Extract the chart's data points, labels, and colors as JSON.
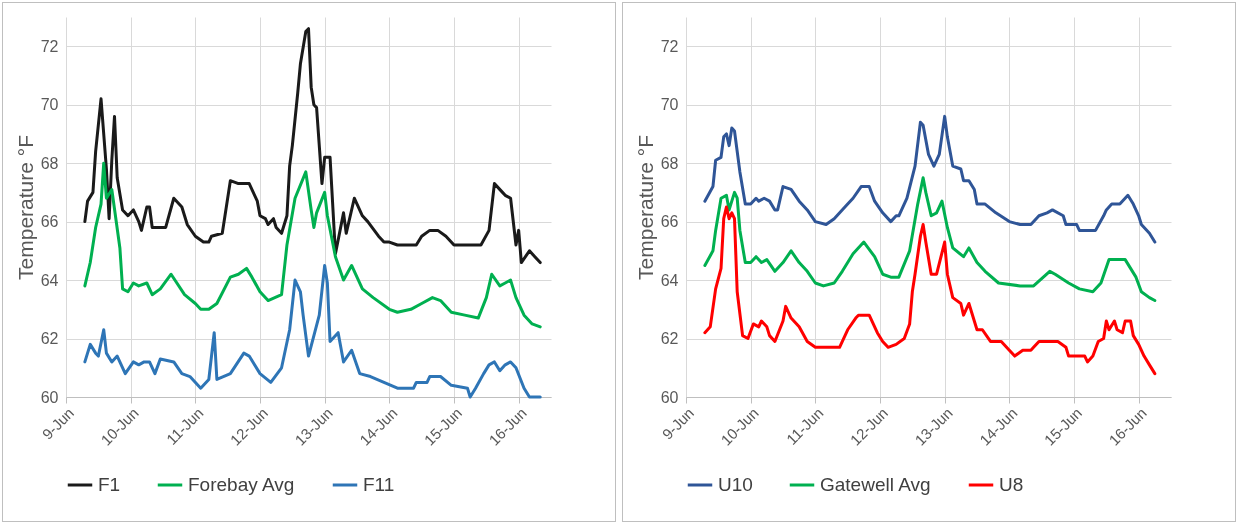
{
  "chart_data": [
    {
      "type": "line",
      "ylabel": "Temperature °F",
      "xlim": [
        "--06-09",
        "--06-16T12:00"
      ],
      "ylim": [
        60,
        73
      ],
      "yticks": [
        60,
        62,
        64,
        66,
        68,
        70,
        72
      ],
      "xticks": [
        {
          "value": "--06-09",
          "label": "9-Jun"
        },
        {
          "value": "--06-10",
          "label": "10-Jun"
        },
        {
          "value": "--06-11",
          "label": "11-Jun"
        },
        {
          "value": "--06-12",
          "label": "12-Jun"
        },
        {
          "value": "--06-13",
          "label": "13-Jun"
        },
        {
          "value": "--06-14",
          "label": "14-Jun"
        },
        {
          "value": "--06-15",
          "label": "15-Jun"
        },
        {
          "value": "--06-16",
          "label": "16-Jun"
        }
      ],
      "grid": true,
      "legend": "bottom",
      "marker": "none",
      "line_style": "solid",
      "series": [
        {
          "name": "F1",
          "color": "#1a1a1a",
          "x": [
            "--06-09T07:00",
            "--06-09T08:00",
            "--06-09T10:00",
            "--06-09T11:00",
            "--06-09T13:00",
            "--06-09T15:00",
            "--06-09T16:00",
            "--06-09T17:00",
            "--06-09T18:00",
            "--06-09T19:00",
            "--06-09T21:00",
            "--06-09T23:00",
            "--06-10T01:00",
            "--06-10T03:00",
            "--06-10T04:00",
            "--06-10T06:00",
            "--06-10T07:00",
            "--06-10T08:00",
            "--06-10T09:00",
            "--06-10T13:00",
            "--06-10T16:00",
            "--06-10T19:00",
            "--06-10T21:00",
            "--06-11T00:00",
            "--06-11T03:00",
            "--06-11T05:00",
            "--06-11T06:00",
            "--06-11T10:00",
            "--06-11T11:00",
            "--06-11T13:00",
            "--06-11T16:00",
            "--06-11T20:00",
            "--06-11T23:00",
            "--06-12T00:00",
            "--06-12T02:00",
            "--06-12T03:00",
            "--06-12T05:00",
            "--06-12T06:00",
            "--06-12T08:00",
            "--06-12T10:00",
            "--06-12T11:00",
            "--06-12T12:00",
            "--06-12T14:00",
            "--06-12T15:00",
            "--06-12T17:00",
            "--06-12T18:00",
            "--06-12T19:00",
            "--06-12T20:00",
            "--06-12T21:00",
            "--06-12T23:00",
            "--06-13T00:00",
            "--06-13T02:00",
            "--06-13T04:00",
            "--06-13T07:00",
            "--06-13T08:00",
            "--06-13T11:00",
            "--06-13T14:00",
            "--06-13T16:00",
            "--06-13T20:00",
            "--06-13T22:00",
            "--06-14T00:00",
            "--06-14T03:00",
            "--06-14T10:00",
            "--06-14T12:00",
            "--06-14T15:00",
            "--06-14T18:00",
            "--06-14T21:00",
            "--06-15T00:00",
            "--06-15T10:00",
            "--06-15T13:00",
            "--06-15T15:00",
            "--06-15T18:00",
            "--06-15T19:00",
            "--06-15T21:00",
            "--06-15T23:00",
            "--06-16T00:00",
            "--06-16T01:00",
            "--06-16T04:00",
            "--06-16T06:00",
            "--06-16T08:00"
          ],
          "values": [
            66.0,
            66.7,
            67.0,
            68.4,
            70.2,
            67.8,
            66.1,
            68.1,
            69.6,
            67.5,
            66.4,
            66.2,
            66.4,
            66.0,
            65.7,
            66.5,
            66.5,
            65.8,
            65.8,
            65.8,
            66.8,
            66.5,
            65.9,
            65.5,
            65.3,
            65.3,
            65.5,
            65.6,
            66.2,
            67.4,
            67.3,
            67.3,
            66.7,
            66.2,
            66.1,
            65.9,
            66.1,
            65.8,
            65.6,
            66.2,
            67.9,
            68.6,
            70.4,
            71.4,
            72.5,
            72.6,
            70.6,
            70.0,
            69.9,
            67.3,
            68.2,
            68.2,
            64.9,
            66.3,
            65.6,
            66.8,
            66.2,
            66.0,
            65.5,
            65.3,
            65.3,
            65.2,
            65.2,
            65.5,
            65.7,
            65.7,
            65.5,
            65.2,
            65.2,
            65.7,
            67.3,
            67.0,
            66.9,
            66.8,
            65.2,
            65.7,
            64.6,
            65.0,
            64.8,
            64.6
          ]
        },
        {
          "name": "Forebay Avg",
          "color": "#00b050",
          "x": [
            "--06-09T07:00",
            "--06-09T09:00",
            "--06-09T11:00",
            "--06-09T13:00",
            "--06-09T14:00",
            "--06-09T15:00",
            "--06-09T17:00",
            "--06-09T20:00",
            "--06-09T21:00",
            "--06-09T23:00",
            "--06-10T01:00",
            "--06-10T03:00",
            "--06-10T06:00",
            "--06-10T08:00",
            "--06-10T11:00",
            "--06-10T15:00",
            "--06-10T20:00",
            "--06-11T00:00",
            "--06-11T02:00",
            "--06-11T05:00",
            "--06-11T08:00",
            "--06-11T13:00",
            "--06-11T16:00",
            "--06-11T19:00",
            "--06-11T21:00",
            "--06-12T00:00",
            "--06-12T03:00",
            "--06-12T08:00",
            "--06-12T10:00",
            "--06-12T13:00",
            "--06-12T17:00",
            "--06-12T19:00",
            "--06-12T20:00",
            "--06-12T21:00",
            "--06-13T00:00",
            "--06-13T01:00",
            "--06-13T04:00",
            "--06-13T07:00",
            "--06-13T10:00",
            "--06-13T14:00",
            "--06-13T18:00",
            "--06-14T00:00",
            "--06-14T03:00",
            "--06-14T08:00",
            "--06-14T12:00",
            "--06-14T16:00",
            "--06-14T19:00",
            "--06-14T23:00",
            "--06-15T04:00",
            "--06-15T09:00",
            "--06-15T12:00",
            "--06-15T14:00",
            "--06-15T17:00",
            "--06-15T19:00",
            "--06-15T21:00",
            "--06-15T23:00",
            "--06-16T02:00",
            "--06-16T05:00",
            "--06-16T08:00"
          ],
          "values": [
            63.8,
            64.6,
            65.8,
            66.6,
            68.0,
            66.8,
            67.1,
            65.1,
            63.7,
            63.6,
            63.9,
            63.8,
            63.9,
            63.5,
            63.7,
            64.2,
            63.5,
            63.2,
            63.0,
            63.0,
            63.2,
            64.1,
            64.2,
            64.4,
            64.1,
            63.6,
            63.3,
            63.5,
            65.2,
            66.8,
            67.7,
            66.4,
            65.8,
            66.3,
            67.0,
            66.2,
            64.8,
            64.0,
            64.5,
            63.7,
            63.4,
            63.0,
            62.9,
            63.0,
            63.2,
            63.4,
            63.3,
            62.9,
            62.8,
            62.7,
            63.4,
            64.2,
            63.8,
            63.9,
            64.0,
            63.4,
            62.8,
            62.5,
            62.4
          ]
        },
        {
          "name": "F11",
          "color": "#2e75b6",
          "x": [
            "--06-09T07:00",
            "--06-09T09:00",
            "--06-09T11:00",
            "--06-09T12:00",
            "--06-09T14:00",
            "--06-09T15:00",
            "--06-09T17:00",
            "--06-09T19:00",
            "--06-09T22:00",
            "--06-10T01:00",
            "--06-10T03:00",
            "--06-10T05:00",
            "--06-10T07:00",
            "--06-10T09:00",
            "--06-10T11:00",
            "--06-10T16:00",
            "--06-10T19:00",
            "--06-10T22:00",
            "--06-11T02:00",
            "--06-11T05:00",
            "--06-11T07:00",
            "--06-11T08:00",
            "--06-11T13:00",
            "--06-11T18:00",
            "--06-11T20:00",
            "--06-12T00:00",
            "--06-12T04:00",
            "--06-12T08:00",
            "--06-12T11:00",
            "--06-12T13:00",
            "--06-12T15:00",
            "--06-12T16:00",
            "--06-12T18:00",
            "--06-12T20:00",
            "--06-12T22:00",
            "--06-13T00:00",
            "--06-13T01:00",
            "--06-13T02:00",
            "--06-13T05:00",
            "--06-13T07:00",
            "--06-13T10:00",
            "--06-13T13:00",
            "--06-13T17:00",
            "--06-13T22:00",
            "--06-14T03:00",
            "--06-14T09:00",
            "--06-14T10:00",
            "--06-14T14:00",
            "--06-14T15:00",
            "--06-14T19:00",
            "--06-14T23:00",
            "--06-15T05:00",
            "--06-15T06:00",
            "--06-15T08:00",
            "--06-15T11:00",
            "--06-15T13:00",
            "--06-15T15:00",
            "--06-15T17:00",
            "--06-15T19:00",
            "--06-15T21:00",
            "--06-15T23:00",
            "--06-16T02:00",
            "--06-16T04:00",
            "--06-16T08:00"
          ],
          "values": [
            61.2,
            61.8,
            61.5,
            61.4,
            62.3,
            61.5,
            61.2,
            61.4,
            60.8,
            61.2,
            61.1,
            61.2,
            61.2,
            60.8,
            61.3,
            61.2,
            60.8,
            60.7,
            60.3,
            60.6,
            62.2,
            60.6,
            60.8,
            61.5,
            61.4,
            60.8,
            60.5,
            61.0,
            62.3,
            64.0,
            63.6,
            62.8,
            61.4,
            62.1,
            62.8,
            64.5,
            63.9,
            61.9,
            62.2,
            61.2,
            61.6,
            60.8,
            60.7,
            60.5,
            60.3,
            60.3,
            60.5,
            60.5,
            60.7,
            60.7,
            60.4,
            60.3,
            60.0,
            60.3,
            60.8,
            61.1,
            61.2,
            60.9,
            61.1,
            61.2,
            61.0,
            60.3,
            60.0,
            60.0
          ]
        }
      ]
    },
    {
      "type": "line",
      "ylabel": "Temperature °F",
      "xlim": [
        "--06-09",
        "--06-16T12:00"
      ],
      "ylim": [
        60,
        73
      ],
      "yticks": [
        60,
        62,
        64,
        66,
        68,
        70,
        72
      ],
      "xticks": [
        {
          "value": "--06-09",
          "label": "9-Jun"
        },
        {
          "value": "--06-10",
          "label": "10-Jun"
        },
        {
          "value": "--06-11",
          "label": "11-Jun"
        },
        {
          "value": "--06-12",
          "label": "12-Jun"
        },
        {
          "value": "--06-13",
          "label": "13-Jun"
        },
        {
          "value": "--06-14",
          "label": "14-Jun"
        },
        {
          "value": "--06-15",
          "label": "15-Jun"
        },
        {
          "value": "--06-16",
          "label": "16-Jun"
        }
      ],
      "grid": true,
      "legend": "bottom",
      "marker": "none",
      "line_style": "solid",
      "series": [
        {
          "name": "U10",
          "color": "#2f5597",
          "x": [
            "--06-09T07:00",
            "--06-09T10:00",
            "--06-09T11:00",
            "--06-09T13:00",
            "--06-09T14:00",
            "--06-09T15:00",
            "--06-09T16:00",
            "--06-09T17:00",
            "--06-09T18:00",
            "--06-09T20:00",
            "--06-09T22:00",
            "--06-10T00:00",
            "--06-10T02:00",
            "--06-10T03:00",
            "--06-10T05:00",
            "--06-10T07:00",
            "--06-10T09:00",
            "--06-10T10:00",
            "--06-10T12:00",
            "--06-10T15:00",
            "--06-10T18:00",
            "--06-10T21:00",
            "--06-11T00:00",
            "--06-11T04:00",
            "--06-11T07:00",
            "--06-11T12:00",
            "--06-11T14:00",
            "--06-11T17:00",
            "--06-11T20:00",
            "--06-11T22:00",
            "--06-12T01:00",
            "--06-12T04:00",
            "--06-12T06:00",
            "--06-12T07:00",
            "--06-12T10:00",
            "--06-12T13:00",
            "--06-12T15:00",
            "--06-12T16:00",
            "--06-12T18:00",
            "--06-12T20:00",
            "--06-12T22:00",
            "--06-13T00:00",
            "--06-13T01:00",
            "--06-13T03:00",
            "--06-13T06:00",
            "--06-13T07:00",
            "--06-13T09:00",
            "--06-13T11:00",
            "--06-13T12:00",
            "--06-13T15:00",
            "--06-13T19:00",
            "--06-14T00:00",
            "--06-14T04:00",
            "--06-14T08:00",
            "--06-14T11:00",
            "--06-14T14:00",
            "--06-14T16:00",
            "--06-14T20:00",
            "--06-14T21:00",
            "--06-15T01:00",
            "--06-15T02:00",
            "--06-15T08:00",
            "--06-15T11:00",
            "--06-15T12:00",
            "--06-15T14:00",
            "--06-15T17:00",
            "--06-15T20:00",
            "--06-15T22:00",
            "--06-16T00:00",
            "--06-16T01:00",
            "--06-16T04:00",
            "--06-16T06:00"
          ],
          "values": [
            66.7,
            67.2,
            68.1,
            68.2,
            68.9,
            69.0,
            68.6,
            69.2,
            69.1,
            67.7,
            66.6,
            66.6,
            66.8,
            66.7,
            66.8,
            66.7,
            66.4,
            66.4,
            67.2,
            67.1,
            66.7,
            66.4,
            66.0,
            65.9,
            66.1,
            66.6,
            66.8,
            67.2,
            67.2,
            66.7,
            66.3,
            66.0,
            66.2,
            66.2,
            66.8,
            67.9,
            69.4,
            69.3,
            68.3,
            67.9,
            68.3,
            69.6,
            68.9,
            67.9,
            67.8,
            67.4,
            67.4,
            67.1,
            66.6,
            66.6,
            66.3,
            66.0,
            65.9,
            65.9,
            66.2,
            66.3,
            66.4,
            66.2,
            65.9,
            65.9,
            65.7,
            65.7,
            66.2,
            66.4,
            66.6,
            66.6,
            66.9,
            66.6,
            66.2,
            65.9,
            65.6,
            65.3
          ]
        },
        {
          "name": "Gatewell Avg",
          "color": "#00b050",
          "x": [
            "--06-09T07:00",
            "--06-09T10:00",
            "--06-09T11:00",
            "--06-09T13:00",
            "--06-09T15:00",
            "--06-09T16:00",
            "--06-09T18:00",
            "--06-09T19:00",
            "--06-09T20:00",
            "--06-09T22:00",
            "--06-10T00:00",
            "--06-10T02:00",
            "--06-10T04:00",
            "--06-10T06:00",
            "--06-10T09:00",
            "--06-10T12:00",
            "--06-10T15:00",
            "--06-10T18:00",
            "--06-10T21:00",
            "--06-11T00:00",
            "--06-11T03:00",
            "--06-11T07:00",
            "--06-11T10:00",
            "--06-11T14:00",
            "--06-11T18:00",
            "--06-11T22:00",
            "--06-12T01:00",
            "--06-12T04:00",
            "--06-12T07:00",
            "--06-12T11:00",
            "--06-12T14:00",
            "--06-12T16:00",
            "--06-12T17:00",
            "--06-12T19:00",
            "--06-12T21:00",
            "--06-12T23:00",
            "--06-13T01:00",
            "--06-13T03:00",
            "--06-13T07:00",
            "--06-13T09:00",
            "--06-13T12:00",
            "--06-13T15:00",
            "--06-13T20:00",
            "--06-14T04:00",
            "--06-14T09:00",
            "--06-14T15:00",
            "--06-14T17:00",
            "--06-14T22:00",
            "--06-15T02:00",
            "--06-15T07:00",
            "--06-15T10:00",
            "--06-15T13:00",
            "--06-15T16:00",
            "--06-15T19:00",
            "--06-15T23:00",
            "--06-16T01:00",
            "--06-16T04:00",
            "--06-16T06:00"
          ],
          "values": [
            64.5,
            65.0,
            65.7,
            66.8,
            66.9,
            66.4,
            67.0,
            66.8,
            65.7,
            64.6,
            64.6,
            64.8,
            64.6,
            64.7,
            64.3,
            64.6,
            65.0,
            64.6,
            64.3,
            63.9,
            63.8,
            63.9,
            64.3,
            64.9,
            65.3,
            64.8,
            64.2,
            64.1,
            64.1,
            65.0,
            66.6,
            67.5,
            67.0,
            66.2,
            66.3,
            66.7,
            65.8,
            65.1,
            64.8,
            65.1,
            64.6,
            64.3,
            63.9,
            63.8,
            63.8,
            64.3,
            64.2,
            63.9,
            63.7,
            63.6,
            63.9,
            64.7,
            64.7,
            64.7,
            64.1,
            63.6,
            63.4,
            63.3
          ]
        },
        {
          "name": "U8",
          "color": "#ff0000",
          "x": [
            "--06-09T07:00",
            "--06-09T09:00",
            "--06-09T11:00",
            "--06-09T13:00",
            "--06-09T14:00",
            "--06-09T15:00",
            "--06-09T16:00",
            "--06-09T17:00",
            "--06-09T18:00",
            "--06-09T19:00",
            "--06-09T21:00",
            "--06-09T23:00",
            "--06-10T01:00",
            "--06-10T03:00",
            "--06-10T04:00",
            "--06-10T06:00",
            "--06-10T07:00",
            "--06-10T09:00",
            "--06-10T12:00",
            "--06-10T13:00",
            "--06-10T15:00",
            "--06-10T18:00",
            "--06-10T21:00",
            "--06-11T00:00",
            "--06-11T09:00",
            "--06-11T12:00",
            "--06-11T15:00",
            "--06-11T16:00",
            "--06-11T20:00",
            "--06-11T23:00",
            "--06-12T01:00",
            "--06-12T03:00",
            "--06-12T06:00",
            "--06-12T09:00",
            "--06-12T11:00",
            "--06-12T12:00",
            "--06-12T13:00",
            "--06-12T15:00",
            "--06-12T16:00",
            "--06-12T17:00",
            "--06-12T19:00",
            "--06-12T21:00",
            "--06-13T00:00",
            "--06-13T01:00",
            "--06-13T03:00",
            "--06-13T06:00",
            "--06-13T07:00",
            "--06-13T09:00",
            "--06-13T12:00",
            "--06-13T14:00",
            "--06-13T17:00",
            "--06-13T21:00",
            "--06-14T00:00",
            "--06-14T02:00",
            "--06-14T05:00",
            "--06-14T08:00",
            "--06-14T09:00",
            "--06-14T11:00",
            "--06-14T18:00",
            "--06-14T21:00",
            "--06-14T22:00",
            "--06-15T04:00",
            "--06-15T05:00",
            "--06-15T07:00",
            "--06-15T09:00",
            "--06-15T11:00",
            "--06-15T12:00",
            "--06-15T13:00",
            "--06-15T15:00",
            "--06-15T16:00",
            "--06-15T18:00",
            "--06-15T19:00",
            "--06-15T21:00",
            "--06-15T22:00",
            "--06-16T00:00",
            "--06-16T02:00",
            "--06-16T04:00",
            "--06-16T06:00"
          ],
          "values": [
            62.2,
            62.4,
            63.7,
            64.4,
            66.1,
            66.5,
            66.1,
            66.3,
            66.1,
            63.6,
            62.1,
            62.0,
            62.5,
            62.4,
            62.6,
            62.4,
            62.1,
            61.9,
            62.6,
            63.1,
            62.7,
            62.4,
            61.9,
            61.7,
            61.7,
            62.3,
            62.7,
            62.8,
            62.8,
            62.2,
            61.9,
            61.7,
            61.8,
            62.0,
            62.5,
            63.6,
            64.2,
            65.5,
            65.9,
            65.3,
            64.2,
            64.2,
            65.3,
            64.2,
            63.4,
            63.2,
            62.8,
            63.2,
            62.3,
            62.3,
            61.9,
            61.9,
            61.6,
            61.4,
            61.6,
            61.6,
            61.7,
            61.9,
            61.9,
            61.7,
            61.4,
            61.4,
            61.2,
            61.4,
            61.9,
            62.0,
            62.6,
            62.3,
            62.6,
            62.3,
            62.2,
            62.6,
            62.6,
            62.1,
            61.8,
            61.4,
            61.1,
            60.8
          ]
        }
      ]
    }
  ]
}
